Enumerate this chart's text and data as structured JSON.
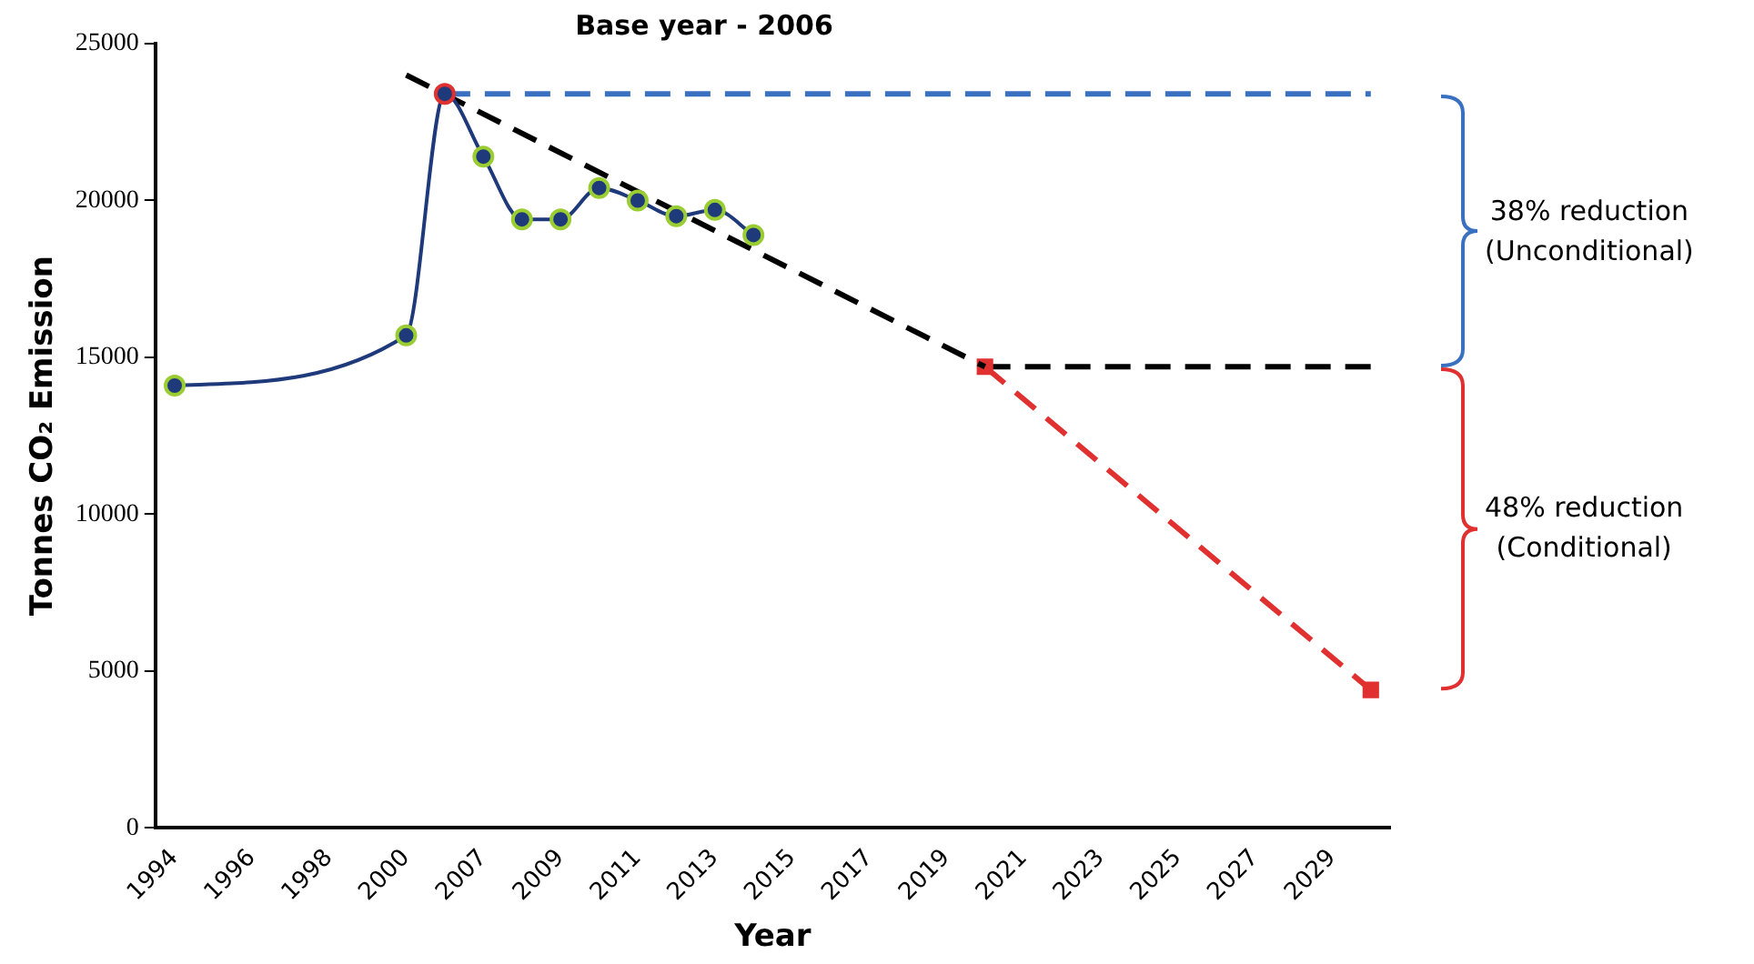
{
  "chart_data": {
    "type": "line",
    "title": "Base year - 2006",
    "xlabel": "Year",
    "ylabel": "Tonnes CO₂ Emission",
    "categories": [
      "1994",
      null,
      "1996",
      null,
      "1998",
      null,
      "2000",
      null,
      "2007",
      null,
      "2009",
      null,
      "2011",
      null,
      "2013",
      null,
      "2015",
      null,
      "2017",
      null,
      "2019",
      null,
      "2021",
      null,
      "2023",
      null,
      "2025",
      null,
      "2027",
      null,
      "2029",
      null
    ],
    "series": [
      {
        "type": "line",
        "color": "#1f3a7a",
        "marker": "circle",
        "line_style": "solid",
        "values": [
          14100,
          null,
          null,
          null,
          null,
          null,
          15700,
          23400,
          21400,
          19400,
          19400,
          20400,
          20000,
          19500,
          19700,
          18900,
          null,
          null,
          null,
          null,
          null,
          null,
          null,
          null,
          null,
          null,
          null,
          null,
          null,
          null,
          null,
          null
        ],
        "colors": [
          "#9acd32",
          null,
          null,
          null,
          null,
          null,
          "#9acd32",
          "#e03030",
          "#9acd32",
          "#9acd32",
          "#9acd32",
          "#9acd32",
          "#9acd32",
          "#9acd32",
          "#9acd32",
          "#9acd32",
          null,
          null,
          null,
          null,
          null,
          null,
          null,
          null,
          null,
          null,
          null,
          null,
          null,
          null,
          null,
          null
        ]
      },
      {
        "type": "line",
        "color": "#000000",
        "marker": "none",
        "line_style": "dashed",
        "values": [
          null,
          null,
          null,
          null,
          null,
          null,
          24000,
          null,
          null,
          null,
          null,
          null,
          null,
          null,
          null,
          null,
          null,
          null,
          null,
          null,
          null,
          14700,
          null,
          null,
          null,
          null,
          null,
          null,
          null,
          null,
          null,
          null
        ]
      },
      {
        "type": "line",
        "color": "#e03030",
        "marker": "square",
        "line_style": "dashed",
        "values": [
          null,
          null,
          null,
          null,
          null,
          null,
          null,
          null,
          null,
          null,
          null,
          null,
          null,
          null,
          null,
          null,
          null,
          null,
          null,
          null,
          null,
          14700,
          null,
          null,
          null,
          null,
          null,
          null,
          null,
          null,
          null,
          4400
        ]
      },
      {
        "type": "line",
        "color": "#3a70c0",
        "marker": "none",
        "line_style": "dashed",
        "values": [
          null,
          null,
          null,
          null,
          null,
          null,
          null,
          23400,
          null,
          null,
          null,
          null,
          null,
          null,
          null,
          null,
          null,
          null,
          null,
          null,
          null,
          null,
          null,
          null,
          null,
          null,
          null,
          null,
          null,
          null,
          null,
          23400
        ]
      },
      {
        "type": "line",
        "color": "#000000",
        "marker": "none",
        "line_style": "dashed",
        "values": [
          null,
          null,
          null,
          null,
          null,
          null,
          null,
          null,
          null,
          null,
          null,
          null,
          null,
          null,
          null,
          null,
          null,
          null,
          null,
          null,
          null,
          14700,
          null,
          null,
          null,
          null,
          null,
          null,
          null,
          null,
          null,
          14700
        ]
      }
    ],
    "ylim": [
      0,
      25000
    ],
    "yticks": [
      0,
      5000,
      10000,
      15000,
      20000,
      25000
    ],
    "grid": false,
    "legend": false,
    "annotations": [
      "38% reduction\n(Unconditional)",
      "48% reduction\n(Conditional)"
    ]
  }
}
